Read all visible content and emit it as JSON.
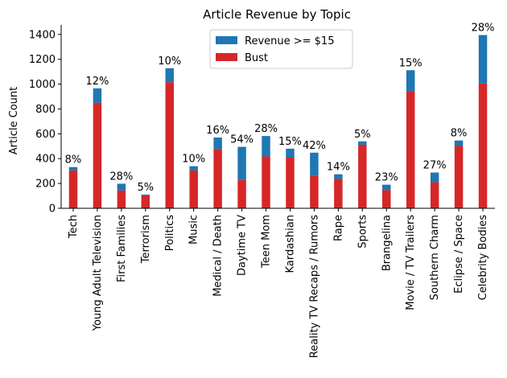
{
  "chart_data": {
    "type": "bar",
    "stacked": true,
    "title": "Article Revenue by Topic",
    "xlabel": "",
    "ylabel": "Article Count",
    "ylim": [
      0,
      1470
    ],
    "yticks": [
      0,
      200,
      400,
      600,
      800,
      1000,
      1200,
      1400
    ],
    "legend_position": "top-center",
    "grid": false,
    "categories": [
      "Tech",
      "Young Adult Television",
      "First Families",
      "Terrorism",
      "Politics",
      "Music",
      "Medical / Death",
      "Daytime TV",
      "Teen Mom",
      "Kardashian",
      "Reality TV Recaps / Rumors",
      "Rape",
      "Sports",
      "Brangelina",
      "Movie / TV Trailers",
      "Southern Charm",
      "Eclipse / Space",
      "Celebrity Bodies"
    ],
    "series": [
      {
        "name": "Bust",
        "color": "#d62728",
        "values": [
          305,
          850,
          143,
          105,
          1015,
          305,
          478,
          228,
          418,
          408,
          260,
          236,
          512,
          146,
          945,
          210,
          502,
          1005
        ]
      },
      {
        "name": "Revenue >= $15",
        "color": "#1f77b4",
        "values": [
          27,
          116,
          55,
          6,
          113,
          34,
          92,
          267,
          164,
          72,
          188,
          38,
          27,
          44,
          167,
          78,
          44,
          390
        ]
      }
    ],
    "data_labels": [
      "8%",
      "12%",
      "28%",
      "5%",
      "10%",
      "10%",
      "16%",
      "54%",
      "28%",
      "15%",
      "42%",
      "14%",
      "5%",
      "23%",
      "15%",
      "27%",
      "8%",
      "28%"
    ]
  }
}
